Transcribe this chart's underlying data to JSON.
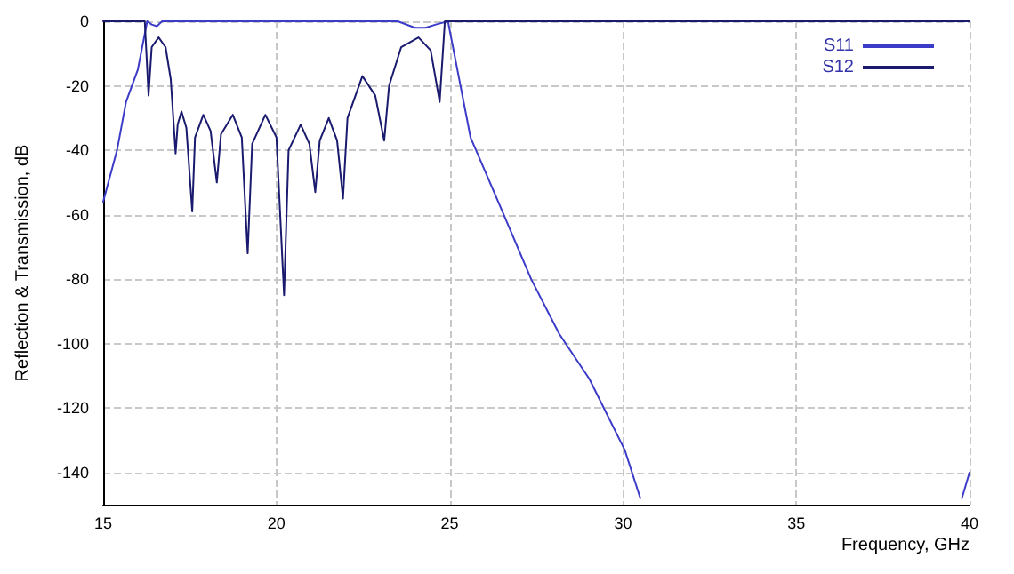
{
  "chart_data": {
    "type": "line",
    "xlabel": "Frequency, GHz",
    "ylabel": "Reflection & Transmission, dB",
    "xlim": [
      15,
      40
    ],
    "xticks": [
      15,
      20,
      25,
      30,
      35,
      40
    ],
    "ylim": [
      -150,
      0
    ],
    "yticks": [
      -140,
      -120,
      -100,
      -80,
      -60,
      -40,
      -20,
      0
    ],
    "grid": true,
    "legend": "top right",
    "marker": "none",
    "line_style": "solid",
    "series": [
      {
        "name": "S11",
        "color": "#3c3cc8",
        "x": [
          15,
          15.4,
          15.66,
          16.0,
          16.27,
          16.4,
          16.55,
          16.7,
          17.2,
          18,
          20,
          22,
          23.5,
          24.0,
          24.3,
          24.6,
          24.95,
          25.6,
          26.48,
          27.35,
          28.16,
          29.03,
          29.54,
          30.05,
          30.5,
          35,
          39.78,
          40
        ],
        "values": [
          -56,
          -40,
          -25,
          -15,
          0,
          -1,
          -1.5,
          0,
          0,
          0,
          0,
          0,
          0,
          -2,
          -2,
          -1,
          0,
          -36,
          -58,
          -80,
          -97,
          -111,
          -122,
          -133,
          -148,
          null,
          -148,
          -140
        ]
      },
      {
        "name": "S12",
        "color": "#1a1a6e",
        "x": [
          15,
          16.2,
          16.31,
          16.4,
          16.6,
          16.8,
          16.95,
          17.09,
          17.15,
          17.26,
          17.4,
          17.57,
          17.65,
          17.89,
          18.1,
          18.28,
          18.4,
          18.74,
          19.0,
          19.17,
          19.3,
          19.68,
          20.0,
          20.22,
          20.35,
          20.7,
          20.95,
          21.12,
          21.25,
          21.51,
          21.75,
          21.92,
          22.05,
          22.48,
          22.85,
          23.11,
          23.25,
          23.6,
          24.1,
          24.45,
          24.71,
          24.86,
          40
        ],
        "values": [
          0,
          0,
          -23,
          -8,
          -5,
          -8,
          -18,
          -41,
          -32,
          -28,
          -33,
          -59,
          -36,
          -29,
          -34,
          -50,
          -35,
          -29,
          -36,
          -72,
          -38,
          -29,
          -36,
          -85,
          -40,
          -32,
          -38,
          -53,
          -37,
          -30,
          -37,
          -55,
          -30,
          -17,
          -23,
          -37,
          -20,
          -8,
          -5,
          -9,
          -25,
          0,
          0
        ]
      }
    ]
  }
}
